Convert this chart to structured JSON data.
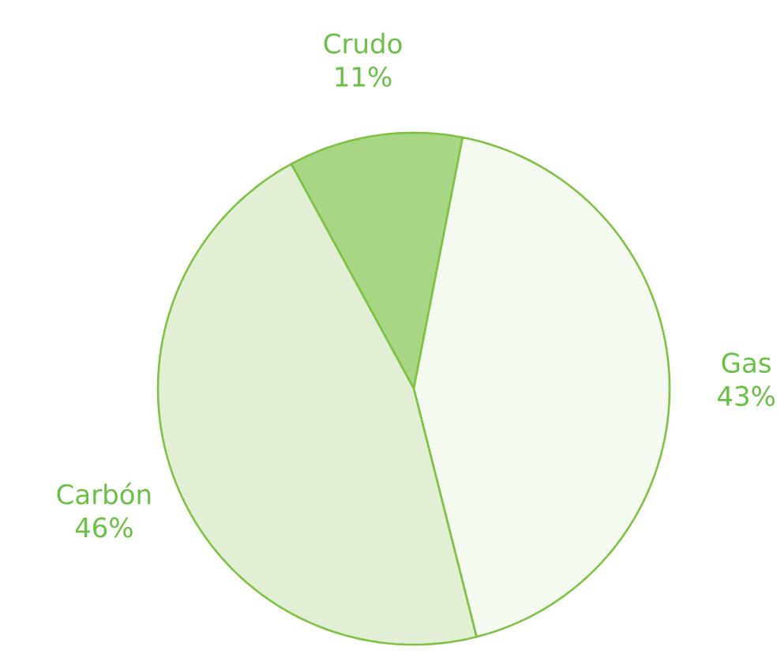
{
  "chart_data": {
    "type": "pie",
    "categories": [
      "Crudo",
      "Gas",
      "Carbón"
    ],
    "values": [
      11,
      43,
      46
    ],
    "value_labels": [
      "11%",
      "43%",
      "46%"
    ],
    "colors": [
      "#a9d685",
      "#f5faf0",
      "#e2efd5"
    ]
  }
}
